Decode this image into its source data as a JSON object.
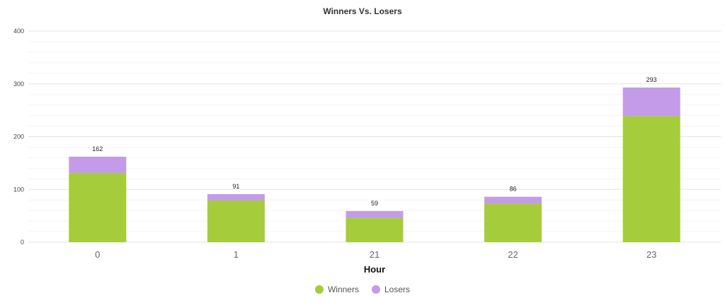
{
  "chart_data": {
    "type": "bar",
    "stacked": true,
    "title": "Winners Vs. Losers",
    "xlabel": "Hour",
    "ylabel": "",
    "ylim": [
      0,
      400
    ],
    "yticks": [
      "0",
      "100",
      "200",
      "300",
      "400"
    ],
    "categories": [
      "0",
      "1",
      "21",
      "22",
      "23"
    ],
    "series": [
      {
        "name": "Winners",
        "color": "#a5cc3a",
        "values": [
          131,
          79,
          46,
          73,
          239
        ]
      },
      {
        "name": "Losers",
        "color": "#c39be8",
        "values": [
          31,
          12,
          13,
          13,
          54
        ]
      }
    ],
    "totals": [
      "162",
      "91",
      "59",
      "86",
      "293"
    ],
    "grid": true,
    "legend_position": "bottom-center"
  }
}
